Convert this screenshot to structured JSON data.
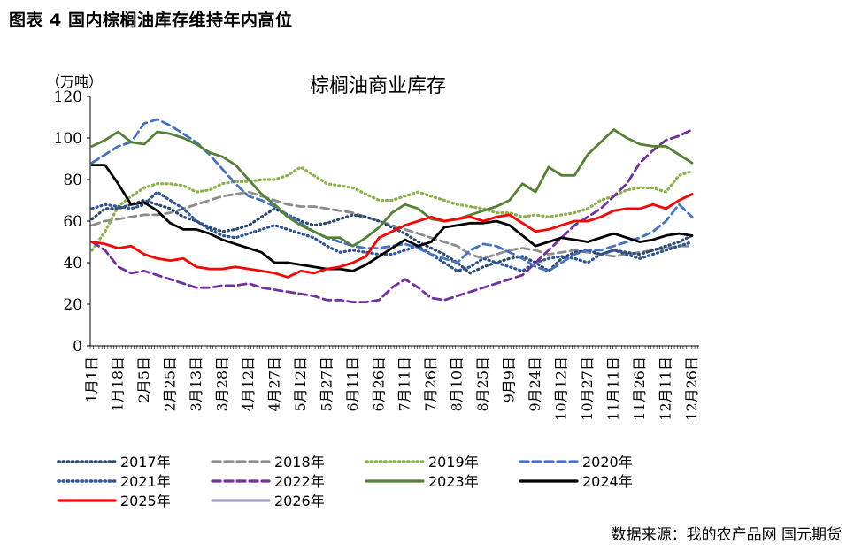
{
  "figure_title": "图表 4 国内棕榈油库存维持年内高位",
  "source": "数据来源：我的农产品网 国元期货",
  "chart_data": {
    "type": "line",
    "title": "棕榈油商业库存",
    "unit_label": "（万吨）",
    "ylim": [
      0,
      120
    ],
    "yticks": [
      0,
      20,
      40,
      60,
      80,
      100,
      120
    ],
    "grid": false,
    "legend_position": "bottom",
    "x_ticks": [
      "1月1日",
      "1月18日",
      "2月5日",
      "2月25日",
      "3月13日",
      "3月28日",
      "4月12日",
      "4月27日",
      "5月12日",
      "5月27日",
      "6月11日",
      "6月26日",
      "7月11日",
      "7月26日",
      "8月10日",
      "8月25日",
      "9月9日",
      "9月24日",
      "10月12日",
      "10月27日",
      "11月11日",
      "11月26日",
      "12月11日",
      "12月26日"
    ],
    "series": [
      {
        "name": "2017年",
        "color": "#2e4a6e",
        "style": "dot",
        "x": [
          0,
          0.5,
          1,
          1.5,
          2,
          2.5,
          3,
          3.5,
          4,
          4.5,
          5,
          5.5,
          6,
          6.5,
          7,
          7.5,
          8,
          8.5,
          9,
          9.5,
          10,
          10.5,
          11,
          11.5,
          12,
          12.5,
          13,
          13.5,
          14,
          14.5,
          15,
          15.5,
          16,
          16.5,
          17,
          17.5,
          18,
          18.5,
          19,
          19.5,
          20,
          20.5,
          21,
          21.5,
          22,
          22.5,
          23
        ],
        "values": [
          61,
          66,
          66,
          68,
          70,
          68,
          66,
          62,
          60,
          57,
          55,
          56,
          58,
          62,
          66,
          63,
          60,
          58,
          59,
          61,
          63,
          62,
          60,
          57,
          54,
          50,
          47,
          44,
          40,
          35,
          38,
          40,
          42,
          43,
          40,
          36,
          42,
          45,
          46,
          44,
          46,
          45,
          44,
          46,
          48,
          50,
          53
        ]
      },
      {
        "name": "2018年",
        "color": "#8c8c8c",
        "style": "dash",
        "x": [
          0,
          0.5,
          1,
          1.5,
          2,
          2.5,
          3,
          3.5,
          4,
          4.5,
          5,
          5.5,
          6,
          6.5,
          7,
          7.5,
          8,
          8.5,
          9,
          9.5,
          10,
          10.5,
          11,
          11.5,
          12,
          12.5,
          13,
          13.5,
          14,
          14.5,
          15,
          15.5,
          16,
          16.5,
          17,
          17.5,
          18,
          18.5,
          19,
          19.5,
          20,
          20.5,
          21,
          21.5,
          22,
          22.5,
          23
        ],
        "values": [
          58,
          60,
          61,
          62,
          63,
          63,
          64,
          66,
          68,
          70,
          72,
          73,
          74,
          72,
          70,
          68,
          67,
          67,
          66,
          65,
          64,
          62,
          60,
          58,
          56,
          54,
          52,
          50,
          48,
          44,
          42,
          44,
          46,
          47,
          46,
          44,
          45,
          46,
          45,
          44,
          43,
          44,
          45,
          46,
          47,
          48,
          48
        ]
      },
      {
        "name": "2019年",
        "color": "#8cb04a",
        "style": "dot",
        "x": [
          0,
          0.5,
          1,
          1.5,
          2,
          2.5,
          3,
          3.5,
          4,
          4.5,
          5,
          5.5,
          6,
          6.5,
          7,
          7.5,
          8,
          8.5,
          9,
          9.5,
          10,
          10.5,
          11,
          11.5,
          12,
          12.5,
          13,
          13.5,
          14,
          14.5,
          15,
          15.5,
          16,
          16.5,
          17,
          17.5,
          18,
          18.5,
          19,
          19.5,
          20,
          20.5,
          21,
          21.5,
          22,
          22.5,
          23
        ],
        "values": [
          46,
          55,
          67,
          72,
          76,
          78,
          78,
          77,
          74,
          75,
          78,
          79,
          79,
          80,
          80,
          82,
          86,
          82,
          78,
          77,
          76,
          73,
          70,
          70,
          72,
          74,
          72,
          70,
          68,
          67,
          66,
          64,
          64,
          62,
          63,
          62,
          63,
          64,
          66,
          70,
          72,
          75,
          76,
          76,
          74,
          82,
          84
        ]
      },
      {
        "name": "2020年",
        "color": "#4472c4",
        "style": "dash",
        "x": [
          0,
          0.5,
          1,
          1.5,
          2,
          2.5,
          3,
          3.5,
          4,
          4.5,
          5,
          5.5,
          6,
          6.5,
          7,
          7.5,
          8,
          8.5,
          9,
          9.5,
          10,
          10.5,
          11,
          11.5,
          12,
          12.5,
          13,
          13.5,
          14,
          14.5,
          15,
          15.5,
          16,
          16.5,
          17,
          17.5,
          18,
          18.5,
          19,
          19.5,
          20,
          20.5,
          21,
          21.5,
          22,
          22.5,
          23
        ],
        "values": [
          88,
          92,
          96,
          98,
          107,
          109,
          106,
          102,
          98,
          92,
          85,
          78,
          72,
          70,
          67,
          63,
          59,
          55,
          52,
          50,
          48,
          47,
          47,
          48,
          49,
          47,
          44,
          42,
          40,
          46,
          49,
          48,
          45,
          42,
          38,
          36,
          40,
          44,
          46,
          46,
          48,
          50,
          52,
          55,
          60,
          68,
          62
        ]
      },
      {
        "name": "2021年",
        "color": "#2f5597",
        "style": "dot",
        "x": [
          0,
          0.5,
          1,
          1.5,
          2,
          2.5,
          3,
          3.5,
          4,
          4.5,
          5,
          5.5,
          6,
          6.5,
          7,
          7.5,
          8,
          8.5,
          9,
          9.5,
          10,
          10.5,
          11,
          11.5,
          12,
          12.5,
          13,
          13.5,
          14,
          14.5,
          15,
          15.5,
          16,
          16.5,
          17,
          17.5,
          18,
          18.5,
          19,
          19.5,
          20,
          20.5,
          21,
          21.5,
          22,
          22.5,
          23
        ],
        "values": [
          66,
          68,
          67,
          66,
          68,
          74,
          70,
          66,
          60,
          56,
          53,
          52,
          54,
          56,
          58,
          56,
          54,
          52,
          48,
          45,
          46,
          45,
          44,
          44,
          46,
          48,
          44,
          40,
          36,
          38,
          42,
          40,
          38,
          36,
          40,
          42,
          43,
          42,
          40,
          44,
          46,
          44,
          42,
          44,
          46,
          48,
          50
        ]
      },
      {
        "name": "2022年",
        "color": "#7030a0",
        "style": "dash",
        "x": [
          0,
          0.5,
          1,
          1.5,
          2,
          2.5,
          3,
          3.5,
          4,
          4.5,
          5,
          5.5,
          6,
          6.5,
          7,
          7.5,
          8,
          8.5,
          9,
          9.5,
          10,
          10.5,
          11,
          11.5,
          12,
          12.5,
          13,
          13.5,
          14,
          14.5,
          15,
          15.5,
          16,
          16.5,
          17,
          17.5,
          18,
          18.5,
          19,
          19.5,
          20,
          20.5,
          21,
          21.5,
          22,
          22.5,
          23
        ],
        "values": [
          50,
          46,
          38,
          35,
          36,
          34,
          32,
          30,
          28,
          28,
          29,
          29,
          30,
          28,
          27,
          26,
          25,
          24,
          22,
          22,
          21,
          21,
          22,
          28,
          32,
          28,
          23,
          22,
          24,
          26,
          28,
          30,
          32,
          34,
          40,
          46,
          52,
          58,
          62,
          66,
          72,
          78,
          88,
          94,
          99,
          101,
          104
        ]
      },
      {
        "name": "2023年",
        "color": "#548235",
        "style": "solid",
        "x": [
          0,
          0.5,
          1,
          1.5,
          2,
          2.5,
          3,
          3.5,
          4,
          4.5,
          5,
          5.5,
          6,
          6.5,
          7,
          7.5,
          8,
          8.5,
          9,
          9.5,
          10,
          10.5,
          11,
          11.5,
          12,
          12.5,
          13,
          13.5,
          14,
          14.5,
          15,
          15.5,
          16,
          16.5,
          17,
          17.5,
          18,
          18.5,
          19,
          19.5,
          20,
          20.5,
          21,
          21.5,
          22,
          22.5,
          23
        ],
        "values": [
          96,
          99,
          103,
          98,
          97,
          103,
          102,
          100,
          97,
          93,
          91,
          87,
          80,
          73,
          68,
          62,
          58,
          55,
          52,
          52,
          48,
          52,
          57,
          64,
          68,
          66,
          61,
          60,
          61,
          63,
          65,
          67,
          70,
          78,
          74,
          86,
          82,
          82,
          92,
          98,
          104,
          100,
          97,
          96,
          96,
          92,
          88
        ]
      },
      {
        "name": "2024年",
        "color": "#000000",
        "style": "solid",
        "x": [
          0,
          0.5,
          1,
          1.5,
          2,
          2.5,
          3,
          3.5,
          4,
          4.5,
          5,
          5.5,
          6,
          6.5,
          7,
          7.5,
          8,
          8.5,
          9,
          9.5,
          10,
          10.5,
          11,
          11.5,
          12,
          12.5,
          13,
          13.5,
          14,
          14.5,
          15,
          15.5,
          16,
          16.5,
          17,
          17.5,
          18,
          18.5,
          19,
          19.5,
          20,
          20.5,
          21,
          21.5,
          22,
          22.5,
          23
        ],
        "values": [
          87,
          87,
          78,
          68,
          69,
          65,
          59,
          56,
          56,
          54,
          51,
          49,
          47,
          45,
          40,
          40,
          39,
          38,
          37,
          37,
          36,
          39,
          43,
          47,
          51,
          48,
          50,
          57,
          58,
          59,
          59,
          60,
          58,
          53,
          48,
          50,
          52,
          51,
          50,
          52,
          54,
          52,
          50,
          51,
          53,
          54,
          53
        ]
      },
      {
        "name": "2025年",
        "color": "#ff0000",
        "style": "solid",
        "x": [
          0,
          0.5,
          1,
          1.5,
          2,
          2.5,
          3,
          3.5,
          4,
          4.5,
          5,
          5.5,
          6,
          6.5,
          7,
          7.5,
          8,
          8.5,
          9,
          9.5,
          10,
          10.5,
          11,
          11.5,
          12,
          12.5,
          13,
          13.5,
          14,
          14.5,
          15,
          15.5,
          16,
          16.5,
          17,
          17.5,
          18,
          18.5,
          19,
          19.5,
          20,
          20.5,
          21,
          21.5,
          22,
          22.5,
          23
        ],
        "values": [
          50,
          49,
          47,
          48,
          44,
          42,
          41,
          42,
          38,
          37,
          37,
          38,
          37,
          36,
          35,
          33,
          36,
          35,
          37,
          38,
          40,
          43,
          52,
          55,
          58,
          60,
          62,
          60,
          61,
          62,
          60,
          62,
          63,
          59,
          55,
          56,
          58,
          60,
          60,
          62,
          65,
          66,
          66,
          68,
          66,
          70,
          73
        ]
      },
      {
        "name": "2026年",
        "color": "#a09ac8",
        "style": "solid",
        "x": [],
        "values": []
      }
    ]
  }
}
